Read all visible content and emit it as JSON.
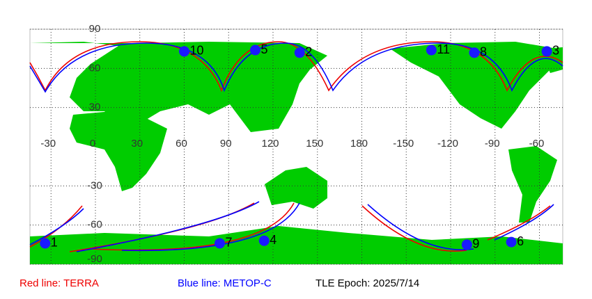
{
  "map": {
    "lon_labels": [
      -30,
      0,
      30,
      60,
      90,
      120,
      150,
      180,
      -150,
      -120,
      -90,
      -60
    ],
    "lat_labels": [
      90,
      60,
      30,
      -30,
      -60,
      -90
    ],
    "satellites": [
      {
        "label": "1",
        "lon": -34,
        "lat": -74
      },
      {
        "label": "2",
        "lon": 138,
        "lat": 72
      },
      {
        "label": "3",
        "lon": -55,
        "lat": 73
      },
      {
        "label": "4",
        "lon": 114,
        "lat": -72
      },
      {
        "label": "5",
        "lon": 108,
        "lat": 74
      },
      {
        "label": "6",
        "lon": -79,
        "lat": -73
      },
      {
        "label": "7",
        "lon": 84,
        "lat": -74
      },
      {
        "label": "8",
        "lon": -104,
        "lat": 72
      },
      {
        "label": "9",
        "lon": -109,
        "lat": -75
      },
      {
        "label": "10",
        "lon": 60,
        "lat": 73
      },
      {
        "label": "11",
        "lon": -133,
        "lat": 74
      }
    ],
    "legend": {
      "red": "Red line: TERRA",
      "blue": "Blue line: METOP-C",
      "epoch": "TLE Epoch: 2025/7/14"
    }
  }
}
